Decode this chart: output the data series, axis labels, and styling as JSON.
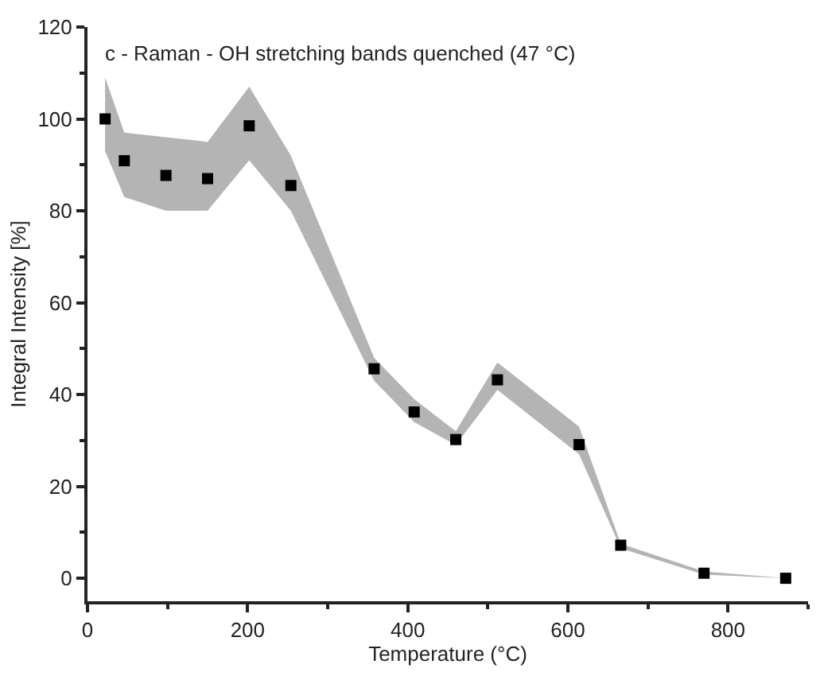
{
  "chart_data": {
    "type": "scatter",
    "title": "c - Raman - OH stretching bands quenched (47 °C)",
    "xlabel": "Temperature (°C)",
    "ylabel": "Integral Intensity [%]",
    "x": [
      22,
      46,
      98,
      150,
      202,
      254,
      358,
      408,
      460,
      512,
      614,
      666,
      770,
      872
    ],
    "series": [
      {
        "color": "#000000",
        "values": [
          100,
          90.9,
          87.7,
          87,
          98.5,
          85.5,
          45.6,
          36.2,
          30.2,
          43.2,
          29.1,
          7.2,
          1.1,
          0
        ],
        "lower": [
          93,
          83,
          80,
          80,
          91,
          80,
          43,
          34,
          29,
          41,
          27,
          6.5,
          0.8,
          0
        ],
        "upper": [
          109,
          97,
          96,
          95,
          107,
          92,
          48,
          39,
          32,
          47,
          33,
          7.5,
          1.5,
          0
        ]
      }
    ],
    "xlim": [
      0,
      900
    ],
    "ylim": [
      -5,
      120
    ],
    "xticks": [
      0,
      200,
      400,
      600,
      800
    ],
    "yticks": [
      0,
      20,
      40,
      60,
      80,
      100,
      120
    ],
    "marker": "square"
  }
}
